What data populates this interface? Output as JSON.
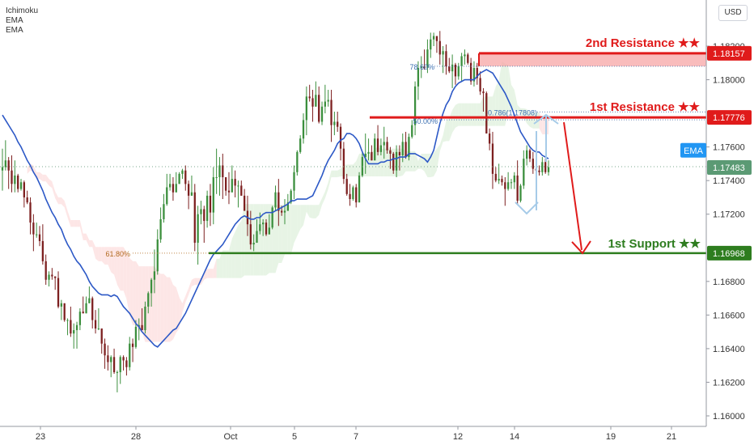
{
  "indicators": [
    "Ichimoku",
    "EMA",
    "EMA"
  ],
  "currency": "USD",
  "chart_data": {
    "type": "candlestick",
    "symbol": "",
    "y_axis": {
      "ylim": [
        1.1595,
        1.1835
      ],
      "tick_labels": [
        "1.18200",
        "1.18000",
        "1.17600",
        "1.17400",
        "1.17200",
        "1.16800",
        "1.16600",
        "1.16400",
        "1.16200",
        "1.16000"
      ],
      "tick_values": [
        1.182,
        1.18,
        1.176,
        1.174,
        1.172,
        1.168,
        1.166,
        1.164,
        1.162,
        1.16
      ]
    },
    "x_axis": {
      "tick_labels": [
        "23",
        "28",
        "Oct",
        "5",
        "7",
        "12",
        "14",
        "19",
        "21"
      ]
    },
    "price_badges": [
      {
        "label": "1.18157",
        "value": 1.18157,
        "color": "#e01b1b"
      },
      {
        "label": "1.17776",
        "value": 1.17776,
        "color": "#e01b1b"
      },
      {
        "label": "EMA",
        "value": 1.1758,
        "color": "#2196f3"
      },
      {
        "label": "1.17483",
        "value": 1.17483,
        "color": "#5b9a74"
      },
      {
        "label": "1.16968",
        "value": 1.16968,
        "color": "#2e7d1f"
      }
    ],
    "levels": [
      {
        "label": "2nd Resistance ★★",
        "value": 1.18157,
        "color": "#e01b1b"
      },
      {
        "label": "1st Resistance ★★",
        "value": 1.17776,
        "color": "#e01b1b"
      },
      {
        "label": "1st Support ★★",
        "value": 1.16968,
        "color": "#2e7d1f"
      }
    ],
    "fib_labels": [
      {
        "label": "78.60%",
        "value": 1.1808
      },
      {
        "label": "50.00%",
        "value": 1.17776
      },
      {
        "label": "0.786(1.17808)",
        "value": 1.17808
      },
      {
        "label": "61.80%",
        "value": 1.16968
      }
    ],
    "last_price": 1.17483,
    "candles": [
      [
        1.1746,
        1.1748,
        1.1759,
        1.1734
      ],
      [
        1.1748,
        1.1752,
        1.1764,
        1.1746
      ],
      [
        1.1752,
        1.1746,
        1.1754,
        1.1735
      ],
      [
        1.1746,
        1.1738,
        1.1755,
        1.1733
      ],
      [
        1.1738,
        1.1743,
        1.1752,
        1.1733
      ],
      [
        1.1743,
        1.1735,
        1.1744,
        1.1733
      ],
      [
        1.1735,
        1.1739,
        1.1741,
        1.1734
      ],
      [
        1.1739,
        1.173,
        1.174,
        1.1724
      ],
      [
        1.173,
        1.1727,
        1.1734,
        1.1726
      ],
      [
        1.1727,
        1.1715,
        1.173,
        1.1708
      ],
      [
        1.1715,
        1.1708,
        1.172,
        1.1698
      ],
      [
        1.1708,
        1.1708,
        1.1715,
        1.1706
      ],
      [
        1.1708,
        1.1704,
        1.1713,
        1.1701
      ],
      [
        1.1704,
        1.1692,
        1.1714,
        1.169
      ],
      [
        1.1692,
        1.1681,
        1.1696,
        1.1678
      ],
      [
        1.1681,
        1.1684,
        1.1686,
        1.1677
      ],
      [
        1.1684,
        1.1683,
        1.1688,
        1.1681
      ],
      [
        1.1683,
        1.1682,
        1.1683,
        1.1675
      ],
      [
        1.1682,
        1.1665,
        1.1686,
        1.1664
      ],
      [
        1.1665,
        1.1667,
        1.1669,
        1.1657
      ],
      [
        1.1667,
        1.1657,
        1.1667,
        1.1656
      ],
      [
        1.1657,
        1.1657,
        1.1658,
        1.1648
      ],
      [
        1.1657,
        1.1649,
        1.1665,
        1.1647
      ],
      [
        1.1649,
        1.1651,
        1.1655,
        1.164
      ],
      [
        1.1651,
        1.1654,
        1.1656,
        1.164
      ],
      [
        1.1654,
        1.1662,
        1.1664,
        1.1651
      ],
      [
        1.1662,
        1.1661,
        1.1671,
        1.1661
      ],
      [
        1.1661,
        1.1667,
        1.1671,
        1.1661
      ],
      [
        1.1667,
        1.167,
        1.1677,
        1.1667
      ],
      [
        1.167,
        1.1657,
        1.1671,
        1.1652
      ],
      [
        1.1657,
        1.1652,
        1.1663,
        1.1649
      ],
      [
        1.1652,
        1.1652,
        1.1664,
        1.1651
      ],
      [
        1.1652,
        1.1643,
        1.1652,
        1.1637
      ],
      [
        1.1643,
        1.1636,
        1.1646,
        1.1628
      ],
      [
        1.1636,
        1.1632,
        1.1642,
        1.1627
      ],
      [
        1.1632,
        1.1635,
        1.1636,
        1.1623
      ],
      [
        1.1635,
        1.1626,
        1.164,
        1.1625
      ],
      [
        1.1626,
        1.1626,
        1.1627,
        1.1614
      ],
      [
        1.1626,
        1.1635,
        1.1636,
        1.1619
      ],
      [
        1.1635,
        1.1633,
        1.1636,
        1.1627
      ],
      [
        1.1633,
        1.1629,
        1.1635,
        1.1624
      ],
      [
        1.1629,
        1.1643,
        1.1647,
        1.1627
      ],
      [
        1.1643,
        1.1641,
        1.1646,
        1.1632
      ],
      [
        1.1641,
        1.1653,
        1.1657,
        1.164
      ],
      [
        1.1653,
        1.1654,
        1.1658,
        1.1645
      ],
      [
        1.1654,
        1.1651,
        1.1664,
        1.1651
      ],
      [
        1.1651,
        1.1665,
        1.1668,
        1.1649
      ],
      [
        1.1665,
        1.1673,
        1.1674,
        1.1661
      ],
      [
        1.1673,
        1.1681,
        1.1682,
        1.1665
      ],
      [
        1.1681,
        1.1686,
        1.1699,
        1.1673
      ],
      [
        1.1686,
        1.1705,
        1.1711,
        1.1684
      ],
      [
        1.1705,
        1.1717,
        1.1724,
        1.1703
      ],
      [
        1.1717,
        1.1726,
        1.1732,
        1.1715
      ],
      [
        1.1726,
        1.1736,
        1.1744,
        1.1725
      ],
      [
        1.1736,
        1.1738,
        1.1744,
        1.1734
      ],
      [
        1.1738,
        1.1733,
        1.1742,
        1.1728
      ],
      [
        1.1733,
        1.1738,
        1.1745,
        1.1733
      ],
      [
        1.1738,
        1.1744,
        1.1745,
        1.1738
      ],
      [
        1.1744,
        1.1746,
        1.1747,
        1.1741
      ],
      [
        1.1746,
        1.1738,
        1.1749,
        1.1734
      ],
      [
        1.1738,
        1.1731,
        1.174,
        1.1723
      ],
      [
        1.1731,
        1.1733,
        1.1743,
        1.1731
      ],
      [
        1.1733,
        1.1703,
        1.1738,
        1.1698
      ],
      [
        1.1703,
        1.172,
        1.1725,
        1.169
      ],
      [
        1.172,
        1.1723,
        1.1728,
        1.1714
      ],
      [
        1.1723,
        1.1716,
        1.1725,
        1.1703
      ],
      [
        1.1716,
        1.1731,
        1.1734,
        1.1712
      ],
      [
        1.1731,
        1.1721,
        1.1738,
        1.1713
      ],
      [
        1.1721,
        1.1742,
        1.1748,
        1.1714
      ],
      [
        1.1742,
        1.1742,
        1.1759,
        1.1732
      ],
      [
        1.1742,
        1.1749,
        1.1754,
        1.1731
      ],
      [
        1.1749,
        1.1742,
        1.1756,
        1.1729
      ],
      [
        1.1742,
        1.1734,
        1.1742,
        1.1731
      ],
      [
        1.1734,
        1.1733,
        1.1745,
        1.1726
      ],
      [
        1.1733,
        1.1741,
        1.1749,
        1.1733
      ],
      [
        1.1741,
        1.1737,
        1.1746,
        1.173
      ],
      [
        1.1737,
        1.1737,
        1.174,
        1.1724
      ],
      [
        1.1737,
        1.1731,
        1.174,
        1.1731
      ],
      [
        1.1731,
        1.1722,
        1.1735,
        1.1722
      ],
      [
        1.1722,
        1.1714,
        1.1731,
        1.1707
      ],
      [
        1.1714,
        1.1702,
        1.1722,
        1.1699
      ],
      [
        1.1702,
        1.1703,
        1.1708,
        1.1698
      ],
      [
        1.1703,
        1.171,
        1.1717,
        1.1703
      ],
      [
        1.171,
        1.1714,
        1.1721,
        1.1708
      ],
      [
        1.1714,
        1.1715,
        1.1717,
        1.1707
      ],
      [
        1.1715,
        1.1708,
        1.1717,
        1.1707
      ],
      [
        1.1708,
        1.1712,
        1.172,
        1.1708
      ],
      [
        1.1712,
        1.1724,
        1.1725,
        1.1711
      ],
      [
        1.1724,
        1.1733,
        1.1737,
        1.1722
      ],
      [
        1.1733,
        1.1722,
        1.1741,
        1.1713
      ],
      [
        1.1722,
        1.1721,
        1.1725,
        1.1719
      ],
      [
        1.1721,
        1.1722,
        1.1729,
        1.1714
      ],
      [
        1.1722,
        1.1727,
        1.1732,
        1.1722
      ],
      [
        1.1727,
        1.1734,
        1.1735,
        1.1726
      ],
      [
        1.1734,
        1.1745,
        1.1749,
        1.1729
      ],
      [
        1.1745,
        1.1757,
        1.1758,
        1.1743
      ],
      [
        1.1757,
        1.1765,
        1.1767,
        1.1756
      ],
      [
        1.1765,
        1.1776,
        1.178,
        1.1762
      ],
      [
        1.1776,
        1.179,
        1.1796,
        1.1767
      ],
      [
        1.179,
        1.1789,
        1.1797,
        1.1787
      ],
      [
        1.1789,
        1.1784,
        1.1794,
        1.1775
      ],
      [
        1.1784,
        1.1791,
        1.1799,
        1.1784
      ],
      [
        1.1791,
        1.1775,
        1.1796,
        1.1774
      ],
      [
        1.1775,
        1.1784,
        1.1787,
        1.1773
      ],
      [
        1.1784,
        1.1787,
        1.1797,
        1.178
      ],
      [
        1.1787,
        1.1788,
        1.1794,
        1.1784
      ],
      [
        1.1788,
        1.1773,
        1.1794,
        1.1763
      ],
      [
        1.1773,
        1.1775,
        1.1781,
        1.1767
      ],
      [
        1.1775,
        1.1772,
        1.1781,
        1.1769
      ],
      [
        1.1772,
        1.1759,
        1.1774,
        1.1752
      ],
      [
        1.1759,
        1.1741,
        1.1763,
        1.1738
      ],
      [
        1.1741,
        1.1732,
        1.1744,
        1.1731
      ],
      [
        1.1732,
        1.1729,
        1.1738,
        1.1725
      ],
      [
        1.1729,
        1.1736,
        1.1737,
        1.1728
      ],
      [
        1.1736,
        1.1727,
        1.1738,
        1.1724
      ],
      [
        1.1727,
        1.1743,
        1.1745,
        1.1727
      ],
      [
        1.1743,
        1.1754,
        1.1757,
        1.1742
      ],
      [
        1.1754,
        1.1756,
        1.1768,
        1.1744
      ],
      [
        1.1756,
        1.1757,
        1.1765,
        1.1752
      ],
      [
        1.1757,
        1.1752,
        1.1761,
        1.1752
      ],
      [
        1.1752,
        1.1765,
        1.1768,
        1.1752
      ],
      [
        1.1765,
        1.1757,
        1.1773,
        1.1755
      ],
      [
        1.1757,
        1.1761,
        1.1765,
        1.1755
      ],
      [
        1.1761,
        1.1763,
        1.1772,
        1.1753
      ],
      [
        1.1763,
        1.1758,
        1.1766,
        1.1756
      ],
      [
        1.1758,
        1.1756,
        1.176,
        1.1747
      ],
      [
        1.1756,
        1.1746,
        1.1757,
        1.1744
      ],
      [
        1.1746,
        1.1757,
        1.1761,
        1.1742
      ],
      [
        1.1757,
        1.1755,
        1.1761,
        1.1746
      ],
      [
        1.1755,
        1.1763,
        1.1768,
        1.1751
      ],
      [
        1.1763,
        1.1754,
        1.1769,
        1.1753
      ],
      [
        1.1754,
        1.1766,
        1.1768,
        1.1752
      ],
      [
        1.1766,
        1.1773,
        1.1776,
        1.1765
      ],
      [
        1.1773,
        1.1796,
        1.1799,
        1.1767
      ],
      [
        1.1796,
        1.1807,
        1.1811,
        1.1788
      ],
      [
        1.1807,
        1.1808,
        1.1814,
        1.1801
      ],
      [
        1.1808,
        1.1807,
        1.1818,
        1.1806
      ],
      [
        1.1807,
        1.1818,
        1.1824,
        1.1804
      ],
      [
        1.1818,
        1.1824,
        1.1828,
        1.1813
      ],
      [
        1.1824,
        1.1826,
        1.1828,
        1.182
      ],
      [
        1.1826,
        1.1823,
        1.1826,
        1.1816
      ],
      [
        1.1823,
        1.1815,
        1.1829,
        1.1809
      ],
      [
        1.1815,
        1.1817,
        1.182,
        1.1804
      ],
      [
        1.1817,
        1.1808,
        1.1821,
        1.1803
      ],
      [
        1.1808,
        1.1805,
        1.1813,
        1.1804
      ],
      [
        1.1805,
        1.1809,
        1.1815,
        1.1795
      ],
      [
        1.1809,
        1.1802,
        1.181,
        1.1797
      ],
      [
        1.1802,
        1.1808,
        1.181,
        1.18
      ],
      [
        1.1808,
        1.1814,
        1.1816,
        1.1799
      ],
      [
        1.1814,
        1.1815,
        1.1818,
        1.1809
      ],
      [
        1.1815,
        1.181,
        1.1816,
        1.1809
      ],
      [
        1.181,
        1.1799,
        1.1813,
        1.1797
      ],
      [
        1.1799,
        1.1807,
        1.1811,
        1.1796
      ],
      [
        1.1807,
        1.1801,
        1.181,
        1.1797
      ],
      [
        1.1801,
        1.1793,
        1.1805,
        1.1791
      ],
      [
        1.1793,
        1.1792,
        1.1795,
        1.1781
      ],
      [
        1.1792,
        1.1768,
        1.1793,
        1.1768
      ],
      [
        1.1768,
        1.1762,
        1.1771,
        1.1758
      ],
      [
        1.1762,
        1.1744,
        1.1769,
        1.1735
      ],
      [
        1.1744,
        1.174,
        1.1748,
        1.1739
      ],
      [
        1.174,
        1.1741,
        1.175,
        1.1738
      ],
      [
        1.1741,
        1.1739,
        1.1743,
        1.1737
      ],
      [
        1.1739,
        1.1735,
        1.1742,
        1.1725
      ],
      [
        1.1735,
        1.1739,
        1.1745,
        1.1734
      ],
      [
        1.1739,
        1.1739,
        1.1741,
        1.1735
      ],
      [
        1.1739,
        1.1743,
        1.1745,
        1.1735
      ],
      [
        1.1743,
        1.1728,
        1.1752,
        1.1726
      ],
      [
        1.1728,
        1.1737,
        1.1738,
        1.1727
      ],
      [
        1.1737,
        1.1753,
        1.1758,
        1.1735
      ],
      [
        1.1753,
        1.1758,
        1.1761,
        1.1749
      ],
      [
        1.1758,
        1.1753,
        1.1759,
        1.1751
      ],
      [
        1.1753,
        1.1747,
        1.1757,
        1.1744
      ],
      [
        1.1747,
        1.1746,
        1.1751,
        1.1737
      ],
      [
        1.1746,
        1.1745,
        1.1749,
        1.1743
      ],
      [
        1.1745,
        1.1751,
        1.1754,
        1.1743
      ],
      [
        1.1751,
        1.1745,
        1.1753,
        1.1744
      ],
      [
        1.1745,
        1.1748,
        1.1752,
        1.1743
      ]
    ],
    "ema": [
      1.1779,
      1.1776,
      1.1773,
      1.177,
      1.1767,
      1.1763,
      1.176,
      1.1756,
      1.1752,
      1.1749,
      1.1745,
      1.1742,
      1.1738,
      1.1734,
      1.1729,
      1.1725,
      1.1721,
      1.1718,
      1.1714,
      1.1711,
      1.1706,
      1.1702,
      1.1699,
      1.1695,
      1.1692,
      1.169,
      1.1687,
      1.1684,
      1.168,
      1.1677,
      1.1675,
      1.1673,
      1.1672,
      1.1672,
      1.1672,
      1.1671,
      1.1672,
      1.1671,
      1.1668,
      1.1665,
      1.1663,
      1.1661,
      1.1658,
      1.1655,
      1.1653,
      1.165,
      1.1648,
      1.1646,
      1.1644,
      1.1642,
      1.1641,
      1.1643,
      1.1645,
      1.1647,
      1.1649,
      1.1651,
      1.1652,
      1.1655,
      1.1658,
      1.1661,
      1.1665,
      1.1669,
      1.1673,
      1.1677,
      1.1681,
      1.1685,
      1.1689,
      1.1693,
      1.1696,
      1.1698,
      1.17,
      1.1702,
      1.1705,
      1.1708,
      1.1711,
      1.1714,
      1.1716,
      1.1718,
      1.1719,
      1.1718,
      1.1717,
      1.1717,
      1.1718,
      1.1718,
      1.172,
      1.1721,
      1.1721,
      1.1721,
      1.1722,
      1.1723,
      1.1724,
      1.1725,
      1.1726,
      1.1728,
      1.1728,
      1.1729,
      1.1729,
      1.1729,
      1.1729,
      1.173,
      1.1731,
      1.1735,
      1.1739,
      1.1743,
      1.1748,
      1.1752,
      1.1755,
      1.1758,
      1.1762,
      1.1764,
      1.1765,
      1.1768,
      1.1768,
      1.1767,
      1.1765,
      1.1762,
      1.1757,
      1.1753,
      1.175,
      1.175,
      1.175,
      1.175,
      1.1751,
      1.1751,
      1.1752,
      1.1752,
      1.1753,
      1.1753,
      1.1754,
      1.1754,
      1.1754,
      1.1756,
      1.1756,
      1.1756,
      1.1755,
      1.1754,
      1.1753,
      1.1751,
      1.1754,
      1.1758,
      1.1766,
      1.1774,
      1.178,
      1.1785,
      1.1788,
      1.1793,
      1.1796,
      1.1798,
      1.1799,
      1.18,
      1.18,
      1.18,
      1.18,
      1.1802,
      1.1804,
      1.1805,
      1.1806,
      1.1805,
      1.1804,
      1.1801,
      1.1798,
      1.1795,
      1.1792,
      1.1788,
      1.1784,
      1.1779,
      1.1774,
      1.1769,
      1.1766,
      1.1763,
      1.176,
      1.1758,
      1.1757,
      1.1757,
      1.1755,
      1.1754,
      1.1753
    ]
  }
}
